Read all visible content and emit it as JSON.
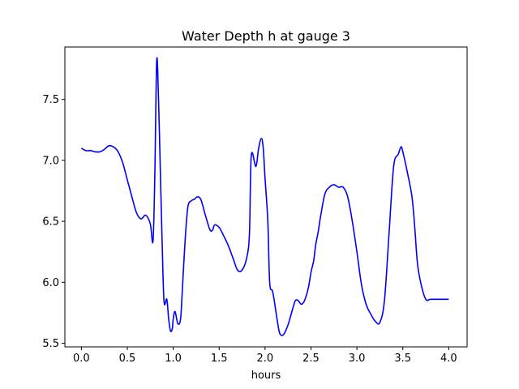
{
  "chart_data": {
    "type": "line",
    "title": "Water Depth h at gauge 3",
    "xlabel": "hours",
    "ylabel": "",
    "xlim": [
      -0.18,
      4.2
    ],
    "ylim": [
      5.47,
      7.93
    ],
    "xticks": [
      0.0,
      0.5,
      1.0,
      1.5,
      2.0,
      2.5,
      3.0,
      3.5,
      4.0
    ],
    "xtick_labels": [
      "0.0",
      "0.5",
      "1.0",
      "1.5",
      "2.0",
      "2.5",
      "3.0",
      "3.5",
      "4.0"
    ],
    "yticks": [
      5.5,
      6.0,
      6.5,
      7.0,
      7.5
    ],
    "ytick_labels": [
      "5.5",
      "6.0",
      "6.5",
      "7.0",
      "7.5"
    ],
    "grid": false,
    "series": [
      {
        "color": "#0000ff",
        "x": [
          0.0,
          0.05,
          0.1,
          0.15,
          0.2,
          0.25,
          0.3,
          0.35,
          0.4,
          0.45,
          0.5,
          0.55,
          0.6,
          0.65,
          0.7,
          0.75,
          0.78,
          0.8,
          0.82,
          0.84,
          0.86,
          0.88,
          0.9,
          0.93,
          0.95,
          0.97,
          0.99,
          1.0,
          1.02,
          1.05,
          1.08,
          1.1,
          1.13,
          1.16,
          1.2,
          1.23,
          1.26,
          1.3,
          1.35,
          1.4,
          1.43,
          1.45,
          1.5,
          1.55,
          1.6,
          1.65,
          1.7,
          1.75,
          1.8,
          1.83,
          1.85,
          1.9,
          1.93,
          1.96,
          1.98,
          2.0,
          2.03,
          2.05,
          2.08,
          2.1,
          2.13,
          2.16,
          2.2,
          2.24,
          2.27,
          2.3,
          2.33,
          2.36,
          2.38,
          2.4,
          2.43,
          2.47,
          2.5,
          2.53,
          2.55,
          2.58,
          2.6,
          2.65,
          2.7,
          2.75,
          2.8,
          2.85,
          2.9,
          2.95,
          3.0,
          3.05,
          3.1,
          3.15,
          3.2,
          3.25,
          3.3,
          3.35,
          3.4,
          3.45,
          3.48,
          3.5,
          3.55,
          3.6,
          3.63,
          3.66,
          3.7,
          3.75,
          3.8,
          3.85,
          3.9,
          3.95,
          4.0
        ],
        "y": [
          7.1,
          7.08,
          7.08,
          7.07,
          7.07,
          7.09,
          7.12,
          7.11,
          7.07,
          6.98,
          6.84,
          6.7,
          6.57,
          6.52,
          6.55,
          6.48,
          6.34,
          6.9,
          7.82,
          7.5,
          6.9,
          6.3,
          5.84,
          5.86,
          5.7,
          5.6,
          5.62,
          5.7,
          5.76,
          5.66,
          5.7,
          5.95,
          6.35,
          6.62,
          6.67,
          6.68,
          6.7,
          6.68,
          6.55,
          6.43,
          6.43,
          6.47,
          6.45,
          6.38,
          6.3,
          6.2,
          6.1,
          6.1,
          6.2,
          6.4,
          7.04,
          6.95,
          7.1,
          7.18,
          7.1,
          6.85,
          6.5,
          6.0,
          5.93,
          5.85,
          5.7,
          5.58,
          5.57,
          5.63,
          5.7,
          5.78,
          5.85,
          5.85,
          5.83,
          5.82,
          5.85,
          5.95,
          6.08,
          6.18,
          6.3,
          6.42,
          6.52,
          6.72,
          6.78,
          6.8,
          6.78,
          6.78,
          6.7,
          6.5,
          6.25,
          5.98,
          5.82,
          5.74,
          5.68,
          5.67,
          5.85,
          6.4,
          6.95,
          7.05,
          7.11,
          7.07,
          6.9,
          6.7,
          6.45,
          6.15,
          5.98,
          5.86,
          5.86,
          5.86,
          5.86,
          5.86,
          5.86
        ]
      }
    ]
  }
}
